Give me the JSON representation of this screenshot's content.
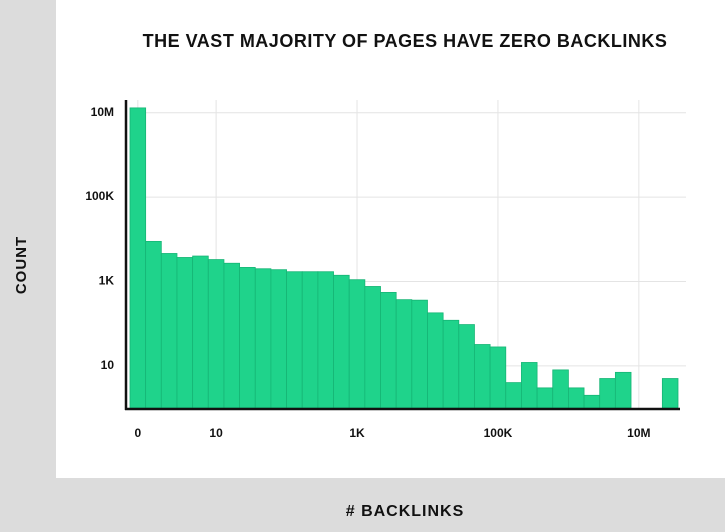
{
  "chart_data": {
    "type": "bar",
    "title": "THE VAST MAJORITY OF PAGES HAVE ZERO BACKLINKS",
    "x_label": "# BACKLINKS",
    "y_label": "COUNT",
    "categories": [
      "0",
      null,
      null,
      null,
      null,
      "10",
      null,
      null,
      null,
      null,
      null,
      null,
      null,
      null,
      "1K",
      null,
      null,
      null,
      null,
      null,
      null,
      null,
      null,
      "100K",
      null,
      null,
      null,
      null,
      null,
      null,
      null,
      null,
      "10M",
      null,
      null
    ],
    "values": [
      13000000,
      8900,
      4600,
      3700,
      4000,
      3300,
      2700,
      2150,
      2000,
      1900,
      1700,
      1700,
      1700,
      1400,
      1100,
      760,
      550,
      370,
      360,
      180,
      120,
      95,
      32,
      28,
      4,
      12,
      3,
      8,
      3,
      2,
      5,
      7,
      null,
      null,
      5
    ],
    "color": "#1fd38b",
    "log_y": true,
    "ylim": [
      1,
      20000000
    ],
    "yticks": [
      10,
      {
        "value": 1000,
        "label": "1K"
      },
      {
        "value": 100000,
        "label": "100K"
      },
      {
        "value": 10000000,
        "label": "10M"
      }
    ],
    "grid": true
  }
}
